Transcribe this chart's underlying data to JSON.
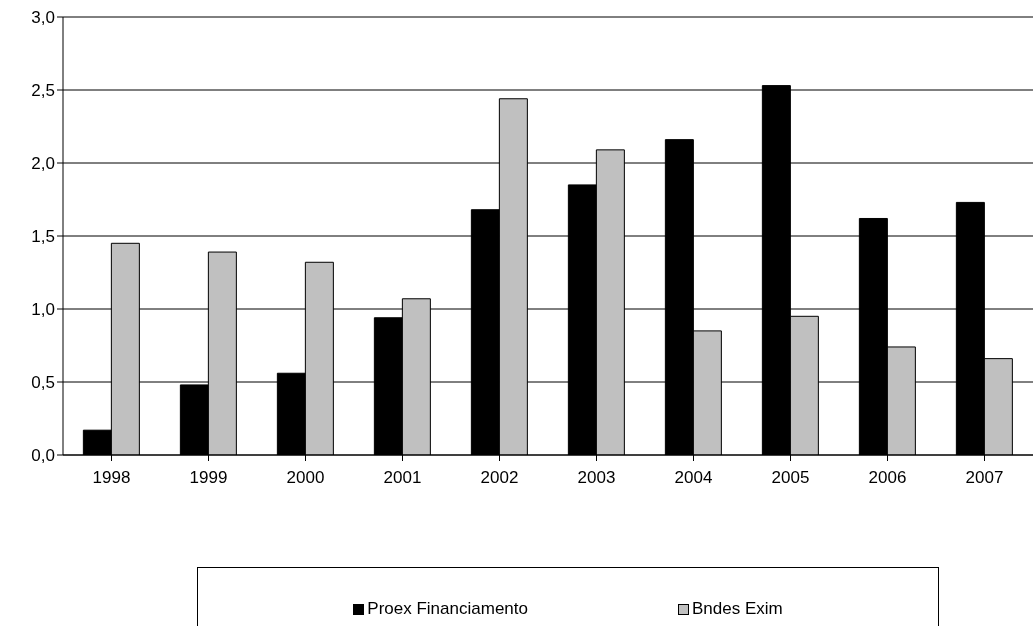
{
  "chart_data": {
    "type": "bar",
    "categories": [
      "1998",
      "1999",
      "2000",
      "2001",
      "2002",
      "2003",
      "2004",
      "2005",
      "2006",
      "2007"
    ],
    "series": [
      {
        "name": "Proex Financiamento",
        "color": "#000000",
        "values": [
          0.17,
          0.48,
          0.56,
          0.94,
          1.68,
          1.85,
          2.16,
          2.53,
          1.62,
          1.73
        ]
      },
      {
        "name": "Bndes Exim",
        "color": "#c0c0c0",
        "values": [
          1.45,
          1.39,
          1.32,
          1.07,
          2.44,
          2.09,
          0.85,
          0.95,
          0.74,
          0.66
        ]
      }
    ],
    "ylim": [
      0,
      3
    ],
    "yticks": [
      {
        "value": 0,
        "label": "0,0"
      },
      {
        "value": 0.5,
        "label": "0,5"
      },
      {
        "value": 1,
        "label": "1,0"
      },
      {
        "value": 1.5,
        "label": "1,5"
      },
      {
        "value": 2,
        "label": "2,0"
      },
      {
        "value": 2.5,
        "label": "2,5"
      },
      {
        "value": 3,
        "label": "3,0"
      }
    ],
    "grid": "y",
    "legend": "bottom"
  }
}
